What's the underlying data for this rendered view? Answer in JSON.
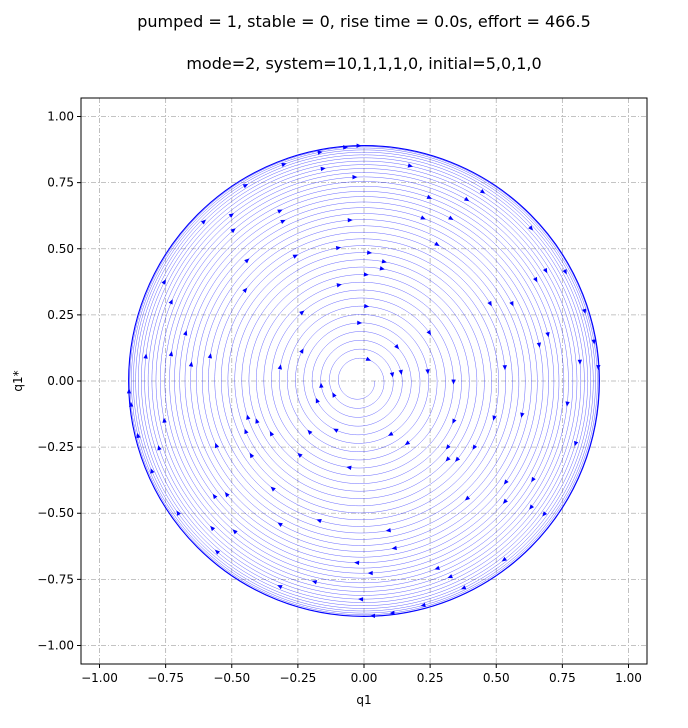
{
  "figure": {
    "title_line1": "pumped = 1, stable = 0, rise time = 0.0s, effort = 466.5",
    "title_line2": "mode=2, system=10,1,1,1,0, initial=5,0,1,0"
  },
  "chart_data": {
    "type": "line",
    "subtype": "phase-portrait",
    "xlabel": "q1",
    "ylabel": "q1*",
    "xlim": [
      -1.07,
      1.07
    ],
    "ylim": [
      -1.07,
      1.07
    ],
    "xticks": [
      -1.0,
      -0.75,
      -0.5,
      -0.25,
      0.0,
      0.25,
      0.5,
      0.75,
      1.0
    ],
    "yticks": [
      -1.0,
      -0.75,
      -0.5,
      -0.25,
      0.0,
      0.25,
      0.5,
      0.75,
      1.0
    ],
    "xtick_labels": [
      "−1.00",
      "−0.75",
      "−0.50",
      "−0.25",
      "0.00",
      "0.25",
      "0.50",
      "0.75",
      "1.00"
    ],
    "ytick_labels": [
      "−1.00",
      "−0.75",
      "−0.50",
      "−0.25",
      "0.00",
      "0.25",
      "0.50",
      "0.75",
      "1.00"
    ],
    "grid": true,
    "line_color": "#0000ff",
    "trajectory": {
      "inner_center_q1": -0.02,
      "inner_center_q1star": 0.0,
      "initial_radius": 0.06,
      "final_radius": 0.89,
      "revolutions": 38,
      "direction": "clockwise"
    },
    "final_orbit_radius": 0.89,
    "arrow_count": 120
  }
}
